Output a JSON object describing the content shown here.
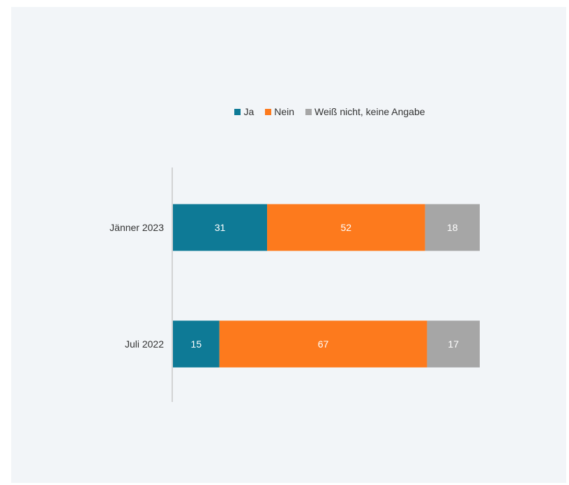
{
  "chart_data": {
    "type": "bar",
    "orientation": "horizontal",
    "stacked": true,
    "categories": [
      "Jänner 2023",
      "Juli 2022"
    ],
    "series": [
      {
        "name": "Ja",
        "color": "#0e7a96",
        "values": [
          31,
          15
        ]
      },
      {
        "name": "Nein",
        "color": "#fd7a1d",
        "values": [
          52,
          67
        ]
      },
      {
        "name": "Weiß nicht, keine Angabe",
        "color": "#a6a6a6",
        "values": [
          18,
          17
        ]
      }
    ],
    "data_labels": true,
    "legend_position": "top",
    "grid": false
  }
}
